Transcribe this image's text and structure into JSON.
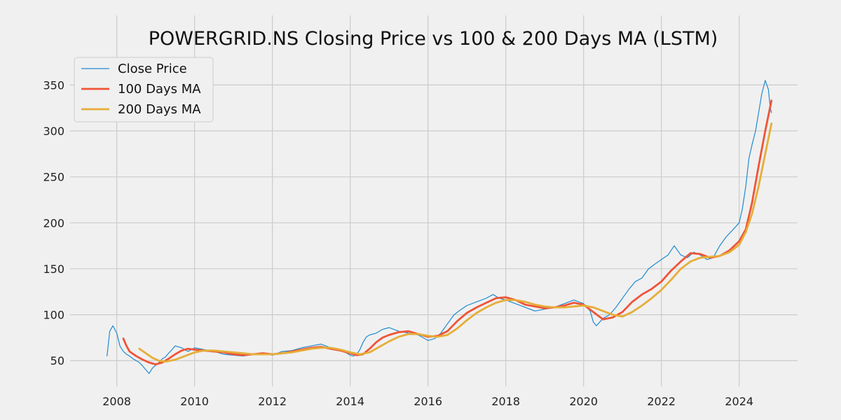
{
  "chart_data": {
    "type": "line",
    "title": "POWERGRID.NS Closing Price vs 100 & 200 Days MA (LSTM)",
    "xlabel": "",
    "ylabel": "",
    "xlim": [
      2006.8,
      2025.5
    ],
    "ylim": [
      22,
      380
    ],
    "x_ticks": [
      2008,
      2010,
      2012,
      2014,
      2016,
      2018,
      2020,
      2022,
      2024
    ],
    "y_ticks": [
      50,
      100,
      150,
      200,
      250,
      300,
      350
    ],
    "grid": true,
    "legend_position": "top-left",
    "series": [
      {
        "name": "Close Price",
        "color": "#1f8bd0",
        "width": 1.2,
        "x": [
          2007.75,
          2007.82,
          2007.9,
          2008.0,
          2008.08,
          2008.17,
          2008.25,
          2008.33,
          2008.42,
          2008.5,
          2008.58,
          2008.67,
          2008.75,
          2008.83,
          2008.92,
          2009.0,
          2009.08,
          2009.17,
          2009.25,
          2009.33,
          2009.42,
          2009.5,
          2009.67,
          2009.83,
          2010.0,
          2010.25,
          2010.5,
          2010.75,
          2011.0,
          2011.25,
          2011.5,
          2011.75,
          2012.0,
          2012.25,
          2012.5,
          2012.75,
          2013.0,
          2013.25,
          2013.5,
          2013.75,
          2014.0,
          2014.08,
          2014.17,
          2014.25,
          2014.33,
          2014.42,
          2014.5,
          2014.67,
          2014.83,
          2015.0,
          2015.25,
          2015.5,
          2015.75,
          2016.0,
          2016.17,
          2016.33,
          2016.5,
          2016.67,
          2016.83,
          2017.0,
          2017.25,
          2017.5,
          2017.67,
          2017.83,
          2018.0,
          2018.25,
          2018.5,
          2018.75,
          2019.0,
          2019.25,
          2019.5,
          2019.75,
          2020.0,
          2020.17,
          2020.25,
          2020.33,
          2020.5,
          2020.67,
          2020.83,
          2021.0,
          2021.17,
          2021.33,
          2021.5,
          2021.67,
          2021.83,
          2022.0,
          2022.17,
          2022.33,
          2022.5,
          2022.67,
          2022.83,
          2023.0,
          2023.17,
          2023.33,
          2023.5,
          2023.67,
          2023.83,
          2024.0,
          2024.08,
          2024.17,
          2024.25,
          2024.33,
          2024.42,
          2024.5,
          2024.58,
          2024.67,
          2024.75,
          2024.8,
          2024.83
        ],
        "y": [
          55,
          82,
          88,
          80,
          66,
          60,
          57,
          55,
          52,
          50,
          48,
          44,
          40,
          36,
          42,
          45,
          48,
          52,
          54,
          58,
          62,
          66,
          64,
          60,
          64,
          62,
          60,
          57,
          56,
          55,
          57,
          58,
          56,
          60,
          61,
          64,
          66,
          68,
          64,
          62,
          56,
          55,
          57,
          62,
          70,
          76,
          78,
          80,
          84,
          86,
          82,
          80,
          78,
          72,
          74,
          80,
          90,
          100,
          105,
          110,
          114,
          118,
          122,
          118,
          116,
          112,
          108,
          104,
          106,
          108,
          112,
          116,
          112,
          104,
          92,
          88,
          96,
          100,
          108,
          118,
          128,
          136,
          140,
          150,
          155,
          160,
          165,
          175,
          165,
          162,
          168,
          165,
          160,
          162,
          175,
          185,
          192,
          200,
          215,
          240,
          270,
          285,
          300,
          320,
          340,
          355,
          345,
          325,
          320
        ]
      },
      {
        "name": "100 Days MA",
        "color": "#f05438",
        "width": 2.8,
        "x": [
          2008.17,
          2008.25,
          2008.33,
          2008.5,
          2008.67,
          2008.83,
          2009.0,
          2009.17,
          2009.33,
          2009.5,
          2009.67,
          2009.83,
          2010.0,
          2010.25,
          2010.5,
          2010.75,
          2011.0,
          2011.25,
          2011.5,
          2011.75,
          2012.0,
          2012.25,
          2012.5,
          2012.75,
          2013.0,
          2013.25,
          2013.5,
          2013.75,
          2014.0,
          2014.17,
          2014.33,
          2014.5,
          2014.67,
          2014.83,
          2015.0,
          2015.25,
          2015.5,
          2015.75,
          2016.0,
          2016.25,
          2016.5,
          2016.75,
          2017.0,
          2017.25,
          2017.5,
          2017.75,
          2018.0,
          2018.25,
          2018.5,
          2018.75,
          2019.0,
          2019.25,
          2019.5,
          2019.75,
          2020.0,
          2020.25,
          2020.5,
          2020.75,
          2021.0,
          2021.25,
          2021.5,
          2021.75,
          2022.0,
          2022.25,
          2022.5,
          2022.75,
          2023.0,
          2023.25,
          2023.5,
          2023.75,
          2024.0,
          2024.17,
          2024.33,
          2024.5,
          2024.67,
          2024.83
        ],
        "y": [
          74,
          66,
          60,
          55,
          51,
          48,
          46,
          48,
          52,
          57,
          61,
          63,
          62,
          61,
          60,
          59,
          57,
          56,
          57,
          58,
          57,
          58,
          60,
          62,
          64,
          65,
          63,
          61,
          58,
          56,
          57,
          63,
          70,
          75,
          78,
          81,
          82,
          79,
          76,
          77,
          82,
          93,
          102,
          108,
          113,
          118,
          119,
          116,
          111,
          109,
          107,
          108,
          110,
          113,
          111,
          103,
          95,
          97,
          103,
          114,
          122,
          128,
          136,
          148,
          158,
          167,
          166,
          162,
          164,
          170,
          180,
          193,
          222,
          262,
          300,
          333
        ]
      },
      {
        "name": "200 Days MA",
        "color": "#e5ae38",
        "width": 2.8,
        "x": [
          2008.58,
          2008.75,
          2008.92,
          2009.08,
          2009.25,
          2009.5,
          2009.75,
          2010.0,
          2010.25,
          2010.5,
          2010.75,
          2011.0,
          2011.25,
          2011.5,
          2011.75,
          2012.0,
          2012.25,
          2012.5,
          2012.75,
          2013.0,
          2013.25,
          2013.5,
          2013.75,
          2014.0,
          2014.25,
          2014.5,
          2014.75,
          2015.0,
          2015.25,
          2015.5,
          2015.75,
          2016.0,
          2016.25,
          2016.5,
          2016.75,
          2017.0,
          2017.25,
          2017.5,
          2017.75,
          2018.0,
          2018.25,
          2018.5,
          2018.75,
          2019.0,
          2019.25,
          2019.5,
          2019.75,
          2020.0,
          2020.25,
          2020.5,
          2020.75,
          2021.0,
          2021.25,
          2021.5,
          2021.75,
          2022.0,
          2022.25,
          2022.5,
          2022.75,
          2023.0,
          2023.25,
          2023.5,
          2023.75,
          2024.0,
          2024.17,
          2024.33,
          2024.5,
          2024.67,
          2024.83
        ],
        "y": [
          63,
          58,
          53,
          50,
          49,
          51,
          55,
          59,
          61,
          61,
          60,
          59,
          58,
          57,
          57,
          57,
          58,
          59,
          61,
          63,
          64,
          64,
          62,
          59,
          57,
          59,
          65,
          71,
          76,
          79,
          79,
          77,
          76,
          78,
          85,
          94,
          102,
          108,
          113,
          116,
          116,
          114,
          111,
          109,
          108,
          108,
          109,
          110,
          108,
          104,
          100,
          98,
          103,
          110,
          118,
          127,
          138,
          150,
          158,
          162,
          163,
          164,
          168,
          176,
          190,
          210,
          240,
          275,
          308
        ]
      }
    ]
  }
}
